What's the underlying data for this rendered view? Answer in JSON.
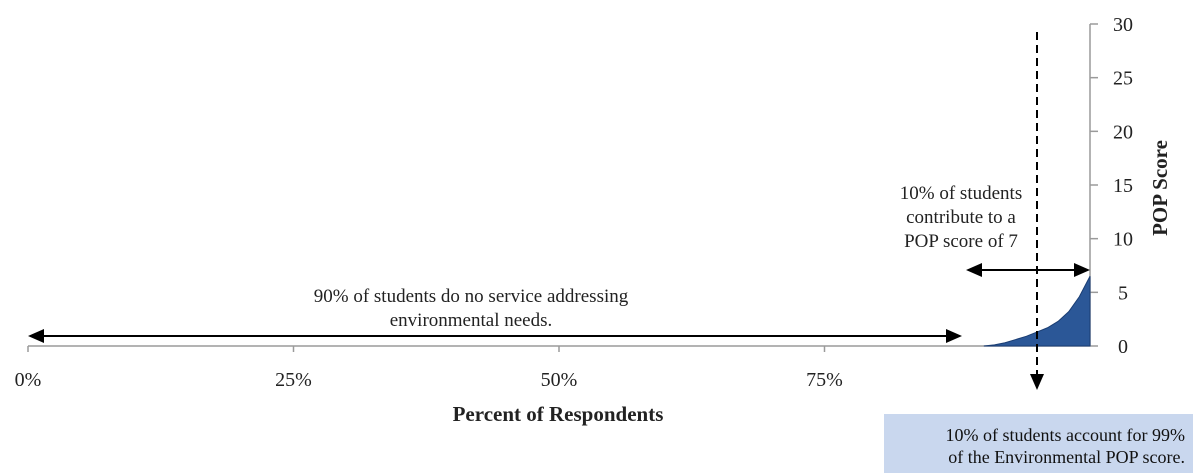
{
  "chart_data": {
    "type": "area",
    "title": "",
    "xlabel": "Percent of Respondents",
    "ylabel": "POP Score",
    "xlim": [
      0,
      100
    ],
    "ylim": [
      0,
      30
    ],
    "x_ticks": [
      0,
      25,
      50,
      75
    ],
    "x_tick_labels": [
      "0%",
      "25%",
      "50%",
      "75%"
    ],
    "y_ticks": [
      0,
      5,
      10,
      15,
      20,
      25,
      30
    ],
    "y_tick_labels": [
      "0",
      "5",
      "10",
      "15",
      "20",
      "25",
      "30"
    ],
    "series": [
      {
        "color": "#2b5797",
        "x": [
          90,
          91,
          92,
          93,
          94,
          95,
          96,
          97,
          98,
          99,
          100
        ],
        "y": [
          0,
          0.1,
          0.3,
          0.6,
          0.9,
          1.3,
          1.7,
          2.3,
          3.2,
          4.6,
          6.5
        ]
      }
    ],
    "grid": false,
    "legend": "none",
    "annotations": {
      "left_label": [
        "90% of students do no service addressing",
        "environmental needs."
      ],
      "right_label": [
        "10% of students",
        "contribute to a",
        "POP score of 7"
      ],
      "callout": [
        "10% of students account for 99%",
        "of the Environmental POP score."
      ]
    }
  }
}
